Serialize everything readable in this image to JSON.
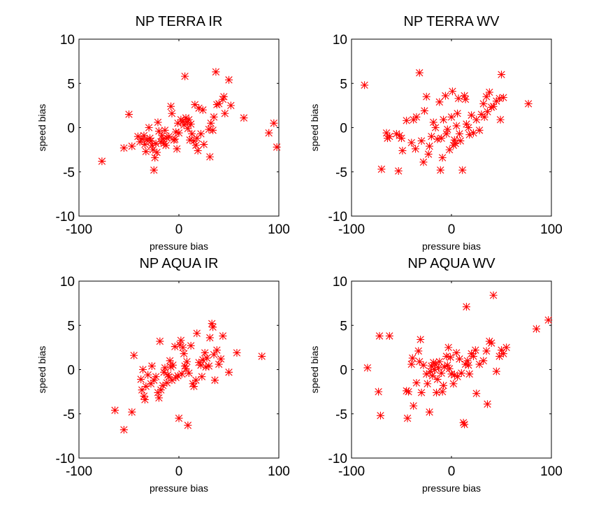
{
  "chart_data": [
    {
      "type": "scatter",
      "title": "NP TERRA IR",
      "xlabel": "pressure bias",
      "ylabel": "speed bias",
      "xlim": [
        -100,
        100
      ],
      "ylim": [
        -10,
        10
      ],
      "xticks": [
        "-100",
        "0",
        "100"
      ],
      "yticks": [
        "10",
        "5",
        "0",
        "-5",
        "-10"
      ],
      "grid": false,
      "marker_color": "#ff0000",
      "points": [
        [
          -77,
          -3.8
        ],
        [
          -55,
          -2.3
        ],
        [
          -50,
          1.5
        ],
        [
          -47,
          -2.1
        ],
        [
          -41,
          -1.0
        ],
        [
          -39,
          -1.6
        ],
        [
          -37,
          -1.3
        ],
        [
          -35,
          -0.9
        ],
        [
          -34,
          -1.9
        ],
        [
          -33,
          -2.7
        ],
        [
          -32,
          -1.4
        ],
        [
          -30,
          0.0
        ],
        [
          -29,
          -1.2
        ],
        [
          -28,
          -1.5
        ],
        [
          -27,
          -2.0
        ],
        [
          -26,
          -2.5
        ],
        [
          -25,
          -4.8
        ],
        [
          -24,
          -3.4
        ],
        [
          -23,
          -1.8
        ],
        [
          -22,
          -2.8
        ],
        [
          -21,
          0.6
        ],
        [
          -20,
          -0.4
        ],
        [
          -18,
          -1.6
        ],
        [
          -17,
          -0.9
        ],
        [
          -16,
          -1.3
        ],
        [
          -15,
          -1.8
        ],
        [
          -14,
          -0.3
        ],
        [
          -13,
          -2.0
        ],
        [
          -12,
          -1.2
        ],
        [
          -10,
          -1.0
        ],
        [
          -8,
          2.4
        ],
        [
          -7,
          1.6
        ],
        [
          -5,
          -1.4
        ],
        [
          -4,
          -1.3
        ],
        [
          -3,
          -0.5
        ],
        [
          -2,
          -2.4
        ],
        [
          -1,
          0.5
        ],
        [
          0,
          -0.6
        ],
        [
          2,
          0.9
        ],
        [
          4,
          0.7
        ],
        [
          5,
          0.3
        ],
        [
          6,
          5.8
        ],
        [
          7,
          1.1
        ],
        [
          8,
          0.6
        ],
        [
          9,
          -0.1
        ],
        [
          10,
          0.9
        ],
        [
          11,
          -1.4
        ],
        [
          12,
          0.4
        ],
        [
          13,
          -0.7
        ],
        [
          15,
          -1.5
        ],
        [
          16,
          2.6
        ],
        [
          17,
          -2.0
        ],
        [
          18,
          -1.2
        ],
        [
          19,
          -2.6
        ],
        [
          20,
          2.2
        ],
        [
          22,
          -0.7
        ],
        [
          24,
          2.0
        ],
        [
          25,
          -1.9
        ],
        [
          30,
          -0.2
        ],
        [
          31,
          -3.3
        ],
        [
          32,
          0.5
        ],
        [
          34,
          -0.3
        ],
        [
          35,
          1.2
        ],
        [
          37,
          6.3
        ],
        [
          38,
          2.6
        ],
        [
          40,
          2.7
        ],
        [
          44,
          3.2
        ],
        [
          45,
          3.5
        ],
        [
          46,
          1.6
        ],
        [
          50,
          5.4
        ],
        [
          52,
          2.5
        ],
        [
          65,
          1.1
        ],
        [
          90,
          -0.6
        ],
        [
          95,
          0.5
        ],
        [
          98,
          -2.2
        ]
      ]
    },
    {
      "type": "scatter",
      "title": "NP TERRA WV",
      "xlabel": "pressure bias",
      "ylabel": "speed bias",
      "xlim": [
        -100,
        100
      ],
      "ylim": [
        -10,
        10
      ],
      "xticks": [
        "-100",
        "0",
        "100"
      ],
      "yticks": [
        "10",
        "5",
        "0",
        "-5",
        "-10"
      ],
      "grid": false,
      "marker_color": "#ff0000",
      "points": [
        [
          -87,
          4.8
        ],
        [
          -70,
          -4.7
        ],
        [
          -65,
          -0.6
        ],
        [
          -64,
          -1.2
        ],
        [
          -62,
          -1.0
        ],
        [
          -55,
          -0.7
        ],
        [
          -53,
          -4.9
        ],
        [
          -52,
          -0.9
        ],
        [
          -50,
          -1.2
        ],
        [
          -49,
          -2.6
        ],
        [
          -45,
          0.8
        ],
        [
          -40,
          -1.7
        ],
        [
          -38,
          0.9
        ],
        [
          -36,
          -2.4
        ],
        [
          -35,
          1.2
        ],
        [
          -32,
          6.2
        ],
        [
          -30,
          -1.5
        ],
        [
          -28,
          -3.9
        ],
        [
          -27,
          1.9
        ],
        [
          -25,
          3.5
        ],
        [
          -23,
          -3.0
        ],
        [
          -22,
          -2.1
        ],
        [
          -20,
          -1.0
        ],
        [
          -18,
          0.6
        ],
        [
          -16,
          0.0
        ],
        [
          -14,
          -1.3
        ],
        [
          -12,
          2.9
        ],
        [
          -11,
          -4.8
        ],
        [
          -10,
          -1.2
        ],
        [
          -9,
          -3.4
        ],
        [
          -8,
          0.9
        ],
        [
          -6,
          3.6
        ],
        [
          -5,
          -0.7
        ],
        [
          -4,
          -0.2
        ],
        [
          -2,
          -2.5
        ],
        [
          0,
          1.2
        ],
        [
          1,
          4.1
        ],
        [
          2,
          -2.0
        ],
        [
          3,
          -1.4
        ],
        [
          4,
          -1.8
        ],
        [
          5,
          0.2
        ],
        [
          6,
          1.6
        ],
        [
          7,
          3.3
        ],
        [
          8,
          -0.7
        ],
        [
          9,
          -1.5
        ],
        [
          11,
          -4.8
        ],
        [
          13,
          3.6
        ],
        [
          14,
          3.2
        ],
        [
          15,
          0.4
        ],
        [
          17,
          0.0
        ],
        [
          18,
          -0.8
        ],
        [
          20,
          1.4
        ],
        [
          22,
          -0.6
        ],
        [
          25,
          0.9
        ],
        [
          28,
          -0.3
        ],
        [
          30,
          1.5
        ],
        [
          32,
          2.7
        ],
        [
          33,
          1.2
        ],
        [
          35,
          3.5
        ],
        [
          36,
          1.8
        ],
        [
          38,
          4.0
        ],
        [
          40,
          2.3
        ],
        [
          42,
          2.4
        ],
        [
          45,
          3.0
        ],
        [
          48,
          3.3
        ],
        [
          49,
          0.9
        ],
        [
          50,
          6.0
        ],
        [
          52,
          3.4
        ],
        [
          77,
          2.7
        ]
      ]
    },
    {
      "type": "scatter",
      "title": "NP AQUA IR",
      "xlabel": "pressure bias",
      "ylabel": "speed bias",
      "xlim": [
        -100,
        100
      ],
      "ylim": [
        -10,
        10
      ],
      "xticks": [
        "-100",
        "0",
        "100"
      ],
      "yticks": [
        "10",
        "5",
        "0",
        "-5",
        "-10"
      ],
      "grid": false,
      "marker_color": "#ff0000",
      "points": [
        [
          -64,
          -4.6
        ],
        [
          -55,
          -6.8
        ],
        [
          -47,
          -4.8
        ],
        [
          -45,
          1.6
        ],
        [
          -38,
          -1.1
        ],
        [
          -37,
          -2.3
        ],
        [
          -36,
          0.0
        ],
        [
          -35,
          -3.0
        ],
        [
          -34,
          -3.4
        ],
        [
          -33,
          -1.9
        ],
        [
          -31,
          -0.6
        ],
        [
          -28,
          -1.6
        ],
        [
          -27,
          0.4
        ],
        [
          -25,
          -1.2
        ],
        [
          -23,
          -0.8
        ],
        [
          -21,
          -2.6
        ],
        [
          -20,
          -3.2
        ],
        [
          -19,
          3.2
        ],
        [
          -18,
          -2.3
        ],
        [
          -16,
          -1.8
        ],
        [
          -15,
          -0.3
        ],
        [
          -14,
          0.2
        ],
        [
          -12,
          -1.5
        ],
        [
          -11,
          -0.6
        ],
        [
          -10,
          -0.8
        ],
        [
          -9,
          1.0
        ],
        [
          -8,
          0.3
        ],
        [
          -7,
          -1.2
        ],
        [
          -6,
          0.5
        ],
        [
          -4,
          2.6
        ],
        [
          -3,
          -0.9
        ],
        [
          -1,
          -0.7
        ],
        [
          0,
          -5.5
        ],
        [
          1,
          2.8
        ],
        [
          2,
          3.3
        ],
        [
          3,
          -0.5
        ],
        [
          4,
          2.5
        ],
        [
          5,
          1.8
        ],
        [
          6,
          0.4
        ],
        [
          7,
          0.1
        ],
        [
          8,
          0.9
        ],
        [
          9,
          -6.3
        ],
        [
          10,
          -0.4
        ],
        [
          12,
          2.7
        ],
        [
          14,
          -1.6
        ],
        [
          15,
          -1.9
        ],
        [
          17,
          -1.2
        ],
        [
          18,
          4.1
        ],
        [
          20,
          0.8
        ],
        [
          22,
          0.5
        ],
        [
          23,
          -0.8
        ],
        [
          24,
          1.1
        ],
        [
          26,
          1.9
        ],
        [
          27,
          0.3
        ],
        [
          28,
          1.3
        ],
        [
          30,
          0.4
        ],
        [
          31,
          3.6
        ],
        [
          33,
          5.2
        ],
        [
          34,
          4.8
        ],
        [
          35,
          1.7
        ],
        [
          36,
          -1.2
        ],
        [
          38,
          2.2
        ],
        [
          40,
          0.6
        ],
        [
          42,
          1.2
        ],
        [
          44,
          3.8
        ],
        [
          50,
          -0.3
        ],
        [
          58,
          1.9
        ],
        [
          83,
          1.5
        ]
      ]
    },
    {
      "type": "scatter",
      "title": "NP AQUA WV",
      "xlabel": "pressure bias",
      "ylabel": "speed bias",
      "xlim": [
        -100,
        100
      ],
      "ylim": [
        -10,
        10
      ],
      "xticks": [
        "-100",
        "0",
        "100"
      ],
      "yticks": [
        "10",
        "5",
        "0",
        "-5",
        "-10"
      ],
      "grid": false,
      "marker_color": "#ff0000",
      "points": [
        [
          -84,
          0.2
        ],
        [
          -73,
          -2.5
        ],
        [
          -72,
          3.8
        ],
        [
          -71,
          -5.2
        ],
        [
          -62,
          3.8
        ],
        [
          -45,
          -2.4
        ],
        [
          -44,
          -5.5
        ],
        [
          -43,
          -2.5
        ],
        [
          -40,
          0.6
        ],
        [
          -39,
          1.3
        ],
        [
          -38,
          -4.1
        ],
        [
          -35,
          -1.5
        ],
        [
          -33,
          2.1
        ],
        [
          -32,
          0.9
        ],
        [
          -31,
          3.4
        ],
        [
          -30,
          -2.6
        ],
        [
          -28,
          0.5
        ],
        [
          -25,
          -0.5
        ],
        [
          -24,
          -1.6
        ],
        [
          -22,
          -4.8
        ],
        [
          -21,
          -0.2
        ],
        [
          -20,
          0.4
        ],
        [
          -19,
          -0.7
        ],
        [
          -18,
          0.8
        ],
        [
          -17,
          0.0
        ],
        [
          -16,
          0.6
        ],
        [
          -15,
          -2.6
        ],
        [
          -14,
          -1.1
        ],
        [
          -13,
          0.2
        ],
        [
          -12,
          0.9
        ],
        [
          -10,
          -0.4
        ],
        [
          -9,
          -2.5
        ],
        [
          -8,
          -1.8
        ],
        [
          -7,
          0.3
        ],
        [
          -5,
          1.5
        ],
        [
          -4,
          0.5
        ],
        [
          -3,
          2.5
        ],
        [
          -2,
          0.1
        ],
        [
          -1,
          1.4
        ],
        [
          0,
          -0.5
        ],
        [
          2,
          -1.6
        ],
        [
          3,
          -0.6
        ],
        [
          5,
          1.9
        ],
        [
          6,
          -0.8
        ],
        [
          8,
          1.2
        ],
        [
          10,
          -0.4
        ],
        [
          12,
          -6.0
        ],
        [
          13,
          -6.2
        ],
        [
          14,
          0.6
        ],
        [
          15,
          7.1
        ],
        [
          16,
          1.0
        ],
        [
          17,
          0.5
        ],
        [
          18,
          -0.5
        ],
        [
          20,
          1.8
        ],
        [
          22,
          1.5
        ],
        [
          24,
          2.2
        ],
        [
          25,
          -2.7
        ],
        [
          28,
          0.6
        ],
        [
          32,
          1.0
        ],
        [
          35,
          2.1
        ],
        [
          36,
          -3.9
        ],
        [
          38,
          3.2
        ],
        [
          40,
          3.0
        ],
        [
          42,
          8.4
        ],
        [
          45,
          -0.2
        ],
        [
          48,
          1.5
        ],
        [
          50,
          2.2
        ],
        [
          52,
          1.8
        ],
        [
          55,
          2.5
        ],
        [
          85,
          4.6
        ],
        [
          97,
          5.6
        ]
      ]
    }
  ]
}
